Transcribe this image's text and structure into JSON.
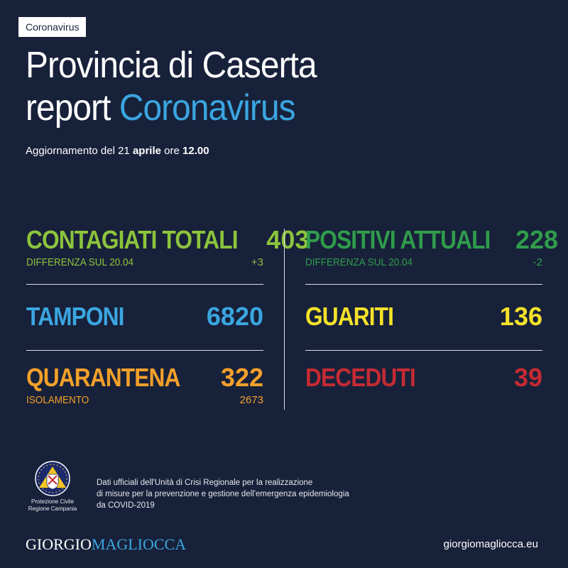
{
  "tag": "Coronavirus",
  "title": {
    "line1": "Provincia di Caserta",
    "line2_prefix": "report",
    "line2_accent": "Coronavirus"
  },
  "update": {
    "prefix": "Aggiornamento del 21",
    "month": "aprile",
    "middle": "ore",
    "time": "12.00"
  },
  "stats_left": {
    "contagiati": {
      "label": "CONTAGIATI TOTALI",
      "value": "403",
      "sub_label": "DIFFERENZA SUL 20.04",
      "sub_value": "+3",
      "color": "#8cc43c"
    },
    "tamponi": {
      "label": "TAMPONI",
      "value": "6820",
      "color": "#3aa6e0"
    },
    "quarantena": {
      "label": "QUARANTENA",
      "value": "322",
      "sub_label": "ISOLAMENTO",
      "sub_value": "2673",
      "color": "#f3a02a"
    }
  },
  "stats_right": {
    "positivi": {
      "label": "POSITIVI ATTUALI",
      "value": "228",
      "sub_label": "DIFFERENZA SUL 20.04",
      "sub_value": "-2",
      "color": "#2f9c4b"
    },
    "guariti": {
      "label": "GUARITI",
      "value": "136",
      "color": "#f5e229"
    },
    "deceduti": {
      "label": "DECEDUTI",
      "value": "39",
      "color": "#c42b33"
    }
  },
  "emblem": {
    "icon": "protezione-civile-emblem",
    "line1": "Protezione Civile",
    "line2": "Regione Campania"
  },
  "source": {
    "line1": "Dati ufficiali dell'Unità di Crisi Regionale per la realizzazione",
    "line2": "di misure per la prevenzione e gestione dell'emergenza epidemiologia",
    "line3": "da COVID-2019"
  },
  "brand": {
    "part1": "GIORGIO",
    "part2": "MAGLIOCCA"
  },
  "site": "giorgiomagliocca.eu",
  "colors": {
    "background": "#18213a",
    "accent": "#3aa6e0"
  }
}
